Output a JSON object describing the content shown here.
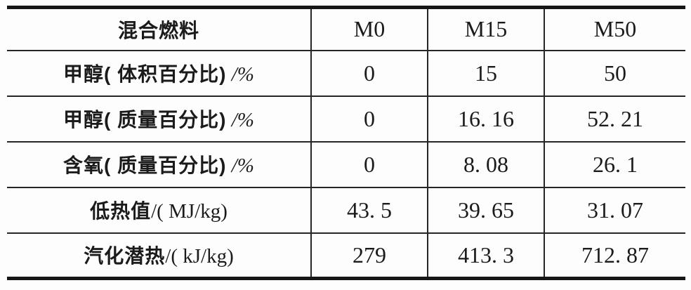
{
  "table": {
    "header": {
      "row_label": "混合燃料",
      "columns": [
        "M0",
        "M15",
        "M50"
      ]
    },
    "rows": [
      {
        "label": "甲醇( 体积百分比)",
        "unit": " /%",
        "values": [
          "0",
          "15",
          "50"
        ]
      },
      {
        "label": "甲醇( 质量百分比)",
        "unit": " /%",
        "values": [
          "0",
          "16. 16",
          "52. 21"
        ]
      },
      {
        "label": "含氧( 质量百分比)",
        "unit": " /%",
        "values": [
          "0",
          "8. 08",
          "26. 1"
        ]
      },
      {
        "label": "低热值",
        "unit": "/( MJ/kg)",
        "values": [
          "43. 5",
          "39. 65",
          "31. 07"
        ]
      },
      {
        "label": "汽化潜热",
        "unit": "/( kJ/kg)",
        "values": [
          "279",
          "413. 3",
          "712. 87"
        ]
      }
    ]
  },
  "chart_data": {
    "type": "table",
    "columns": [
      "混合燃料",
      "M0",
      "M15",
      "M50"
    ],
    "rows": [
      [
        "甲醇(体积百分比)/%",
        0,
        15,
        50
      ],
      [
        "甲醇(质量百分比)/%",
        0,
        16.16,
        52.21
      ],
      [
        "含氧(质量百分比)/%",
        0,
        8.08,
        26.1
      ],
      [
        "低热值/(MJ/kg)",
        43.5,
        39.65,
        31.07
      ],
      [
        "汽化潜热/(kJ/kg)",
        279,
        413.3,
        712.87
      ]
    ]
  },
  "colors": {
    "border_thick": "#161616",
    "border_thin": "#262626",
    "text": "#1b1b1b",
    "background": "#fdfdfd"
  }
}
